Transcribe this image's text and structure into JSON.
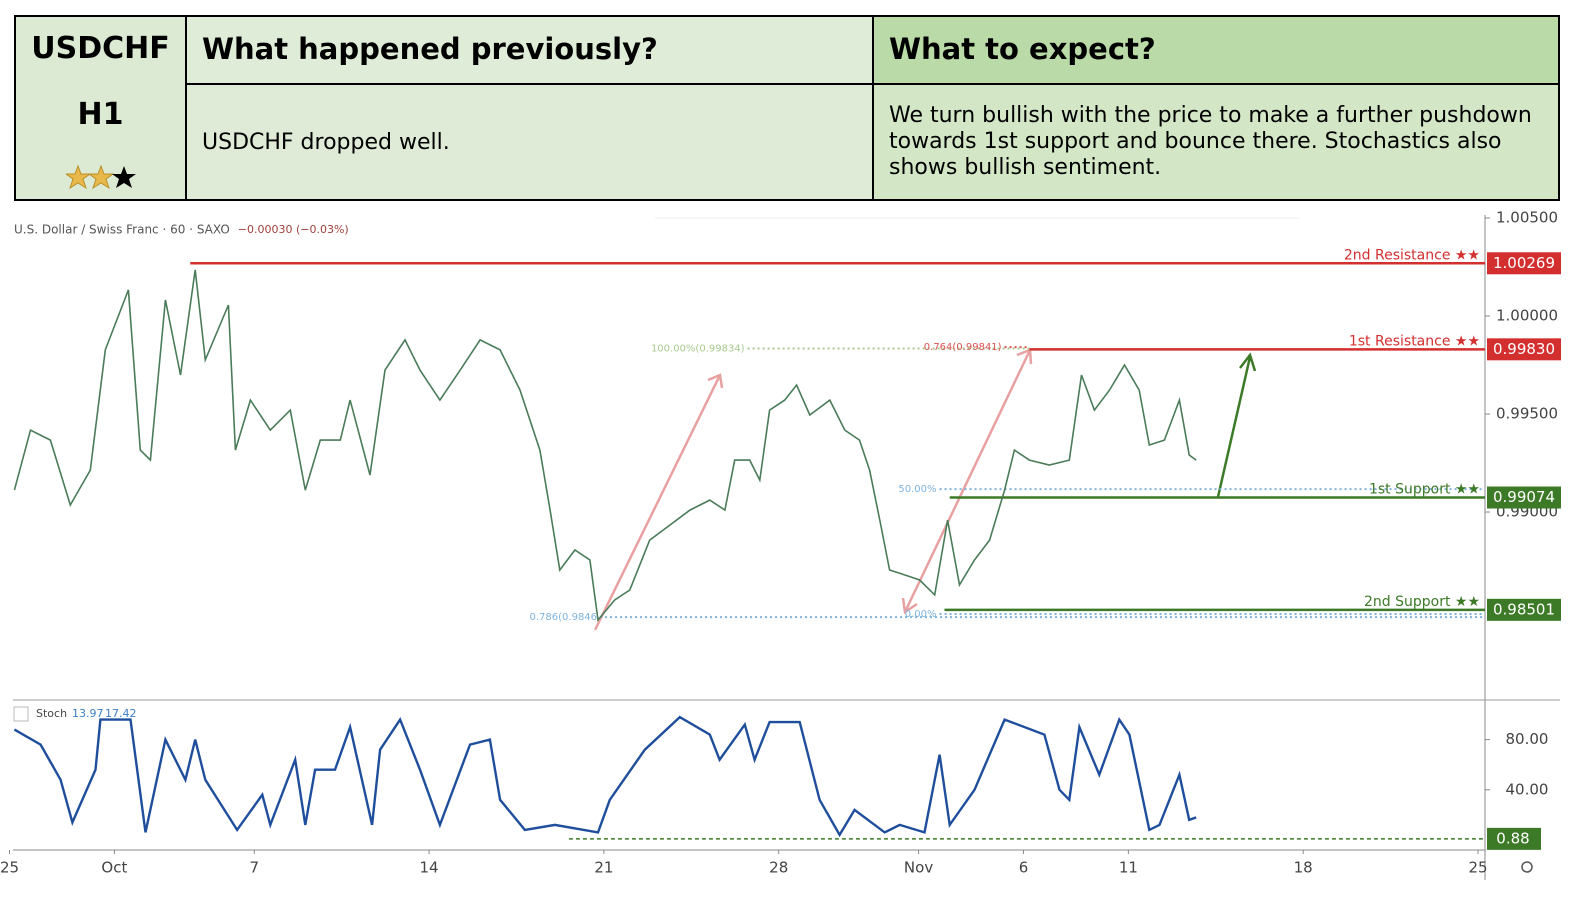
{
  "table": {
    "symbol": "USDCHF",
    "timeframe": "H1",
    "previous_header": "What happened previously?",
    "expect_header": "What to expect?",
    "previous": "USDCHF dropped well.",
    "expect": "We turn bullish with the price to make a further pushdown towards 1st support and bounce there. Stochastics also shows bullish sentiment."
  },
  "chart_data": [
    {
      "type": "line",
      "title": "U.S. Dollar / Swiss Franc · 60 · SAXO",
      "change": "−0.00030 (−0.03%)",
      "color": "#4a7c59",
      "x": [
        -2.86,
        -2.4,
        -1.83,
        -1.26,
        -0.69,
        -0.26,
        0.4,
        0.74,
        1.03,
        1.46,
        1.89,
        2.31,
        2.6,
        3.26,
        3.46,
        3.89,
        4.46,
        5.03,
        5.46,
        5.89,
        6.46,
        6.74,
        7.31,
        7.74,
        8.31,
        8.74,
        9.31,
        9.89,
        10.46,
        11.03,
        11.6,
        12.17,
        12.46,
        12.74,
        13.17,
        13.6,
        13.83,
        14.31,
        14.74,
        15.31,
        15.89,
        16.46,
        17.03,
        17.46,
        17.74,
        18.17,
        18.46,
        18.74,
        19.17,
        19.51,
        19.89,
        20.46,
        20.89,
        21.31,
        21.6,
        21.89,
        22.17,
        22.6,
        23.03,
        23.46,
        23.83,
        24.17,
        24.6,
        25.03,
        25.46,
        25.74,
        26.17,
        26.74,
        27.31,
        27.66,
        28.03,
        28.46,
        28.89,
        29.31,
        29.6,
        30.03,
        30.46,
        30.74,
        30.94
      ],
      "values": [
        0.99112,
        0.99418,
        0.99367,
        0.99036,
        0.99214,
        0.99827,
        1.00133,
        0.99316,
        0.99265,
        1.00082,
        0.99699,
        1.00235,
        0.99776,
        1.00056,
        0.99316,
        0.99571,
        0.99418,
        0.9952,
        0.99112,
        0.99367,
        0.99367,
        0.99571,
        0.99189,
        0.99724,
        0.99878,
        0.99724,
        0.99571,
        0.99724,
        0.99878,
        0.99827,
        0.99622,
        0.99316,
        0.9901,
        0.98704,
        0.98806,
        0.98755,
        0.98449,
        0.98551,
        0.98602,
        0.98857,
        0.98934,
        0.9901,
        0.99061,
        0.9901,
        0.99265,
        0.99265,
        0.99163,
        0.9952,
        0.99571,
        0.99648,
        0.99495,
        0.99571,
        0.99418,
        0.99367,
        0.99214,
        0.98959,
        0.98704,
        0.98679,
        0.98653,
        0.98577,
        0.98959,
        0.98628,
        0.98755,
        0.98857,
        0.99112,
        0.99316,
        0.99265,
        0.9924,
        0.99265,
        0.99699,
        0.9952,
        0.99622,
        0.9975,
        0.99622,
        0.99342,
        0.99367,
        0.99571,
        0.99291,
        0.99265
      ],
      "xlim": [
        -2.9,
        39.2
      ],
      "ylim": [
        0.98041,
        1.005
      ],
      "xticks": [
        {
          "value": -3,
          "label": "25"
        },
        {
          "value": 0,
          "label": "Oct"
        },
        {
          "value": 4,
          "label": "7"
        },
        {
          "value": 9,
          "label": "14"
        },
        {
          "value": 14,
          "label": "21"
        },
        {
          "value": 19,
          "label": "28"
        },
        {
          "value": 23,
          "label": "Nov"
        },
        {
          "value": 26,
          "label": "6"
        },
        {
          "value": 29,
          "label": "11"
        },
        {
          "value": 34,
          "label": "18"
        },
        {
          "value": 39,
          "label": "25"
        }
      ],
      "yticks": [
        {
          "value": 1.005,
          "label": "1.00500"
        },
        {
          "value": 1.0,
          "label": "1.00000"
        },
        {
          "value": 0.995,
          "label": "0.99500"
        },
        {
          "value": 0.99,
          "label": "0.99000"
        }
      ],
      "levels": [
        {
          "name": "2nd Resistance ★★",
          "value": 1.00269,
          "from": 2.17,
          "color": "#d32f2f"
        },
        {
          "name": "1st Resistance ★★",
          "value": 0.9983,
          "label": "0.99830",
          "from": 26.17,
          "color": "#d32f2f"
        },
        {
          "name": "1st Support ★★",
          "value": 0.99074,
          "from": 23.89,
          "color": "#3d7a27"
        },
        {
          "name": "2nd Support ★★",
          "value": 0.98501,
          "from": 23.74,
          "color": "#3d7a27"
        }
      ],
      "fib": [
        {
          "label": "100.00%(0.99834)",
          "value": 0.99834,
          "from": 18.11,
          "to": 26.17,
          "color": "#a9c98f"
        },
        {
          "label": "0.764(0.99841)",
          "value": 0.99841,
          "from": 25.46,
          "to": 26.17,
          "color": "#d9534f"
        },
        {
          "label": "50.00%",
          "value": 0.99117,
          "from": 23.6,
          "color": "#7fb3de"
        },
        {
          "label": "0.786(0.9846",
          "value": 0.98464,
          "from": 13.89,
          "color": "#7fb3de"
        },
        {
          "label": "0.00%",
          "value": 0.9848,
          "from": 23.6,
          "color": "#7fb3de"
        }
      ]
    },
    {
      "type": "line",
      "name": "Stoch",
      "legend_values": [
        13.97,
        17.42
      ],
      "color": "#1f4e9c",
      "x": [
        -2.86,
        -2.11,
        -1.54,
        -1.2,
        -0.54,
        -0.4,
        0.46,
        0.89,
        1.46,
        2.03,
        2.31,
        2.6,
        3.51,
        4.23,
        4.46,
        5.17,
        5.46,
        5.74,
        6.31,
        6.74,
        7.37,
        7.6,
        8.17,
        8.74,
        9.31,
        10.17,
        10.74,
        11.03,
        11.74,
        12.6,
        13.83,
        14.17,
        15.17,
        16.17,
        17.03,
        17.31,
        18.03,
        18.31,
        18.74,
        19.6,
        20.17,
        20.74,
        21.17,
        22.03,
        22.46,
        23.17,
        23.6,
        23.89,
        24.6,
        25.46,
        26.6,
        27.03,
        27.31,
        27.6,
        28.17,
        28.74,
        29.03,
        29.6,
        29.89,
        30.46,
        30.74,
        30.94
      ],
      "values": [
        88,
        76,
        48,
        14,
        56,
        96,
        96,
        6,
        80,
        48,
        80,
        48,
        8,
        36,
        12,
        64,
        12,
        56,
        56,
        90,
        12,
        72,
        96,
        56,
        12,
        76,
        80,
        32,
        8,
        12,
        6,
        32,
        72,
        98,
        84,
        64,
        92,
        64,
        94,
        94,
        32,
        4,
        24,
        6,
        12,
        6,
        68,
        12,
        40,
        96,
        84,
        40,
        32,
        90,
        52,
        96,
        84,
        8,
        12,
        52,
        16,
        18
      ],
      "xlim": [
        -2.9,
        39.2
      ],
      "ylim": [
        -8,
        110
      ],
      "yticks": [
        {
          "value": 80,
          "label": "80.00"
        },
        {
          "value": 40,
          "label": "40.00"
        }
      ],
      "level": 0.88,
      "level_from": 13.0,
      "level_color": "#3d7a27"
    }
  ]
}
